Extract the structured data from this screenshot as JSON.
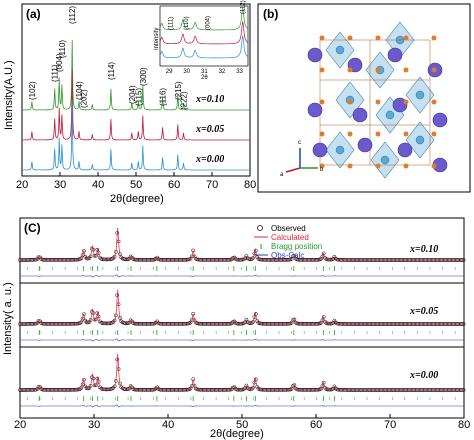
{
  "panel_a": {
    "label": "(a)",
    "ylabel": "Intensity(A.U.)",
    "xlabel": "2θ(degree)",
    "xticks": [
      "20",
      "30",
      "40",
      "50",
      "60",
      "70",
      "80"
    ],
    "series_labels": [
      "x=0.10",
      "x=0.05",
      "x=0.00"
    ],
    "peak_labels": [
      "(102)",
      "(111)",
      "(004)",
      "(110)",
      "(112)",
      "(104)",
      "(202)",
      "(114)",
      "(204)",
      "(115)",
      "(300)",
      "(116)",
      "(215)",
      "(222)"
    ],
    "inset": {
      "ylabel": "Intensity",
      "xlabel": "2θ",
      "xticks": [
        "29",
        "30",
        "31",
        "32",
        "33"
      ],
      "peak_labels": [
        "(111)",
        "(110)",
        "(004)",
        "(112)"
      ]
    },
    "colors": [
      "#2e9a2e",
      "#c4153a",
      "#2a8fd4"
    ]
  },
  "panel_b": {
    "label": "(b)",
    "axes": [
      "c",
      "a",
      "b"
    ],
    "colors": {
      "large_atom": "#6a5acd",
      "small_atom": "#e07b2a",
      "octahedron": "#5aa9d8"
    }
  },
  "panel_c": {
    "label": "(C)",
    "ylabel": "Intensity( a. u.)",
    "xlabel": "2θ(degree)",
    "xticks": [
      "20",
      "30",
      "40",
      "50",
      "60",
      "70",
      "80"
    ],
    "legend": [
      "Observed",
      "Calculated",
      "Bragg position",
      "Obs-Calc"
    ],
    "series_labels": [
      "x=0.10",
      "x=0.05",
      "x=0.00"
    ],
    "colors": {
      "observed": "#000000",
      "calculated": "#e0243a",
      "bragg": "#2a9a2a",
      "diff": "#1f3fc4"
    }
  },
  "chart_data": [
    {
      "type": "line",
      "title": "",
      "xlabel": "2θ(degree)",
      "ylabel": "Intensity(A.U.)",
      "xlim": [
        20,
        80
      ],
      "peaks_2theta": [
        22.6,
        28.6,
        29.8,
        30.5,
        33.2,
        35.0,
        38.5,
        43.4,
        48.9,
        50.6,
        51.8,
        57.0,
        61.0,
        62.5
      ],
      "series": [
        {
          "name": "x=0.10",
          "offset": 2
        },
        {
          "name": "x=0.05",
          "offset": 1
        },
        {
          "name": "x=0.00",
          "offset": 0
        }
      ]
    },
    {
      "type": "line",
      "title": "",
      "xlabel": "2θ(degree)",
      "ylabel": "Intensity( a. u.)",
      "xlim": [
        20,
        80
      ],
      "peaks_2theta": [
        22.6,
        28.6,
        29.8,
        30.5,
        33.2,
        35.0,
        38.5,
        43.4,
        48.9,
        50.6,
        51.8,
        57.0,
        61.0,
        62.5
      ],
      "series": [
        {
          "name": "x=0.10"
        },
        {
          "name": "x=0.05"
        },
        {
          "name": "x=0.00"
        }
      ]
    }
  ]
}
